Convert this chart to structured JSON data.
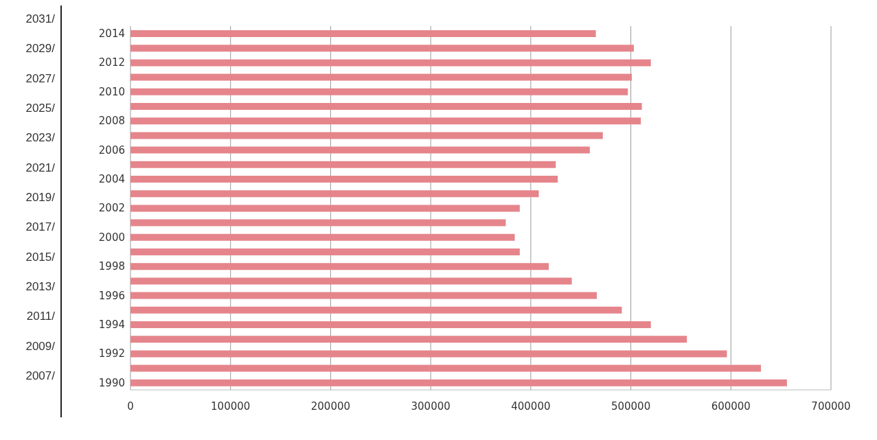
{
  "chart_data": {
    "type": "bar",
    "orientation": "horizontal",
    "categories": [
      "2014",
      null,
      "2012",
      null,
      "2010",
      null,
      "2008",
      null,
      "2006",
      null,
      "2004",
      null,
      "2002",
      null,
      "2000",
      null,
      "1998",
      null,
      "1996",
      null,
      "1994",
      null,
      "1992",
      null,
      "1990"
    ],
    "values": [
      465000,
      503000,
      520000,
      501000,
      497000,
      511000,
      510000,
      472000,
      459000,
      425000,
      427000,
      408000,
      389000,
      375000,
      384000,
      389000,
      418000,
      441000,
      466000,
      491000,
      520000,
      556000,
      596000,
      630000,
      656000
    ],
    "color": "#e5858b",
    "xlim": [
      0,
      700000
    ],
    "xticks": [
      0,
      100000,
      200000,
      300000,
      400000,
      500000,
      600000,
      700000
    ],
    "grid": "x",
    "legend": false,
    "annotations": [
      "2031/",
      "2029/",
      "2027/",
      "2025/",
      "2023/",
      "2021/",
      "2019/",
      "2017/",
      "2015/",
      "2013/",
      "2011/",
      "2009/",
      "2007/"
    ]
  }
}
